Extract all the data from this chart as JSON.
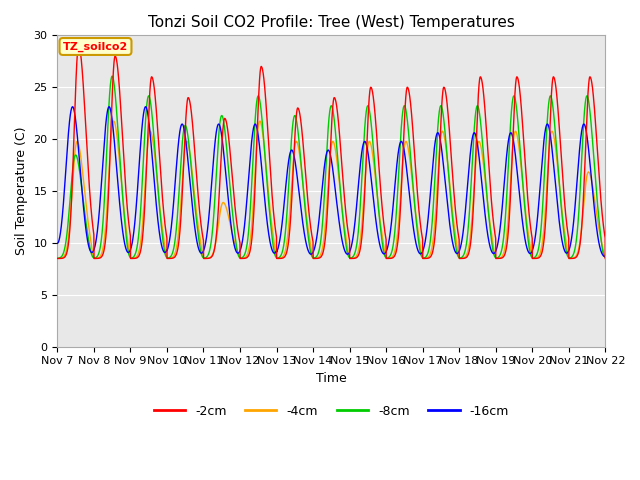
{
  "title": "Tonzi Soil CO2 Profile: Tree (West) Temperatures",
  "xlabel": "Time",
  "ylabel": "Soil Temperature (C)",
  "ylim": [
    0,
    30
  ],
  "yticks": [
    0,
    5,
    10,
    15,
    20,
    25,
    30
  ],
  "x_labels": [
    "Nov 7",
    "Nov 8",
    "Nov 9",
    "Nov 10",
    "Nov 11",
    "Nov 12",
    "Nov 13",
    "Nov 14",
    "Nov 15",
    "Nov 16",
    "Nov 17",
    "Nov 18",
    "Nov 19",
    "Nov 20",
    "Nov 21",
    "Nov 22"
  ],
  "legend_entries": [
    "-2cm",
    "-4cm",
    "-8cm",
    "-16cm"
  ],
  "legend_colors": [
    "#ff0000",
    "#ffa500",
    "#00cc00",
    "#0000ff"
  ],
  "line_colors": [
    "#ff0000",
    "#ffa500",
    "#00cc00",
    "#0000ff"
  ],
  "background_color": "#e8e8e8",
  "outer_bg": "#ffffff",
  "annotation_text": "TZ_soilco2",
  "annotation_bg": "#ffffcc",
  "annotation_border": "#cc9900",
  "title_fontsize": 11,
  "axis_label_fontsize": 9,
  "tick_fontsize": 8,
  "num_days": 15
}
